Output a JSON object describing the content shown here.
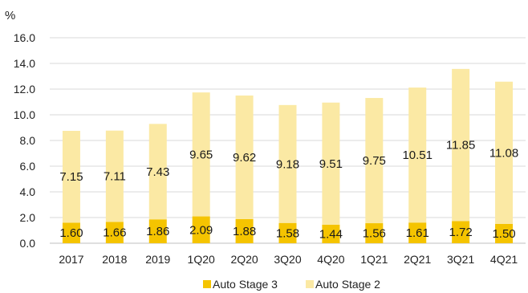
{
  "chart_data": {
    "type": "bar",
    "stacked": true,
    "unit_label": "%",
    "categories": [
      "2017",
      "2018",
      "2019",
      "1Q20",
      "2Q20",
      "3Q20",
      "4Q20",
      "1Q21",
      "2Q21",
      "3Q21",
      "4Q21"
    ],
    "series": [
      {
        "name": "Auto Stage 3",
        "color": "#f5c400",
        "values": [
          1.6,
          1.66,
          1.86,
          2.09,
          1.88,
          1.58,
          1.44,
          1.56,
          1.61,
          1.72,
          1.5
        ]
      },
      {
        "name": "Auto Stage 2",
        "color": "#fbe9a4",
        "values": [
          7.15,
          7.11,
          7.43,
          9.65,
          9.62,
          9.18,
          9.51,
          9.75,
          10.51,
          11.85,
          11.08
        ]
      }
    ],
    "data_labels": {
      "stage3": [
        "1.60",
        "1.66",
        "1.86",
        "2.09",
        "1.88",
        "1.58",
        "1.44",
        "1.56",
        "1.61",
        "1.72",
        "1.50"
      ],
      "stage2": [
        "7.15",
        "7.11",
        "7.43",
        "9.65",
        "9.62",
        "9.18",
        "9.51",
        "9.75",
        "10.51",
        "11.85",
        "11.08"
      ]
    },
    "ylim": [
      0,
      16
    ],
    "yticks": [
      "0.0",
      "2.0",
      "4.0",
      "6.0",
      "8.0",
      "10.0",
      "12.0",
      "14.0",
      "16.0"
    ],
    "grid": true,
    "legend_position": "bottom"
  }
}
